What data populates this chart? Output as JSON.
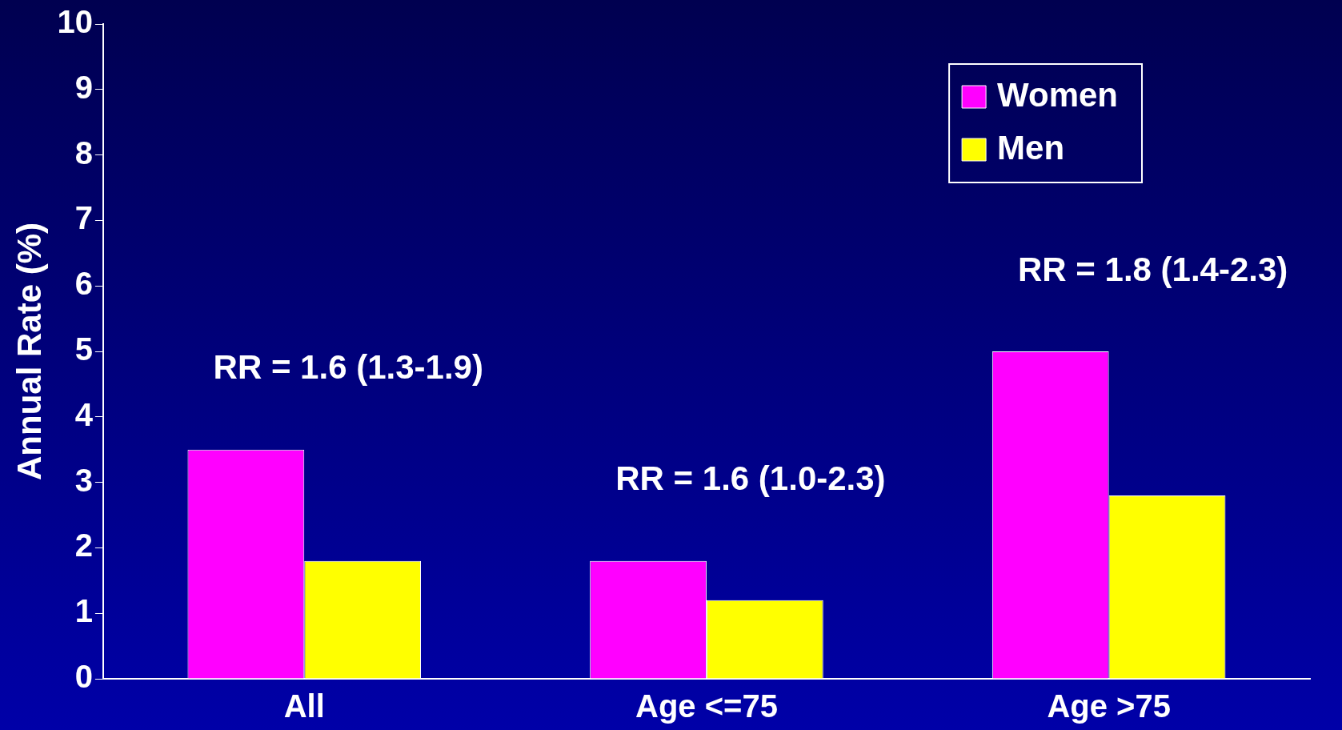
{
  "chart_data": {
    "type": "bar",
    "ylabel": "Annual Rate (%)",
    "categories": [
      "All",
      "Age <=75",
      "Age >75"
    ],
    "series": [
      {
        "name": "Women",
        "color": "#ff00ff",
        "values": [
          3.5,
          1.8,
          5.0
        ]
      },
      {
        "name": "Men",
        "color": "#ffff00",
        "values": [
          1.8,
          1.2,
          2.8
        ]
      }
    ],
    "ylim": [
      0,
      10
    ],
    "yticks": [
      0,
      1,
      2,
      3,
      4,
      5,
      6,
      7,
      8,
      9,
      10
    ],
    "grid": false,
    "legend": "top right",
    "annotations": [
      "RR = 1.6 (1.3-1.9)",
      "RR = 1.6 (1.0-2.3)",
      "RR = 1.8 (1.4-2.3)"
    ]
  }
}
